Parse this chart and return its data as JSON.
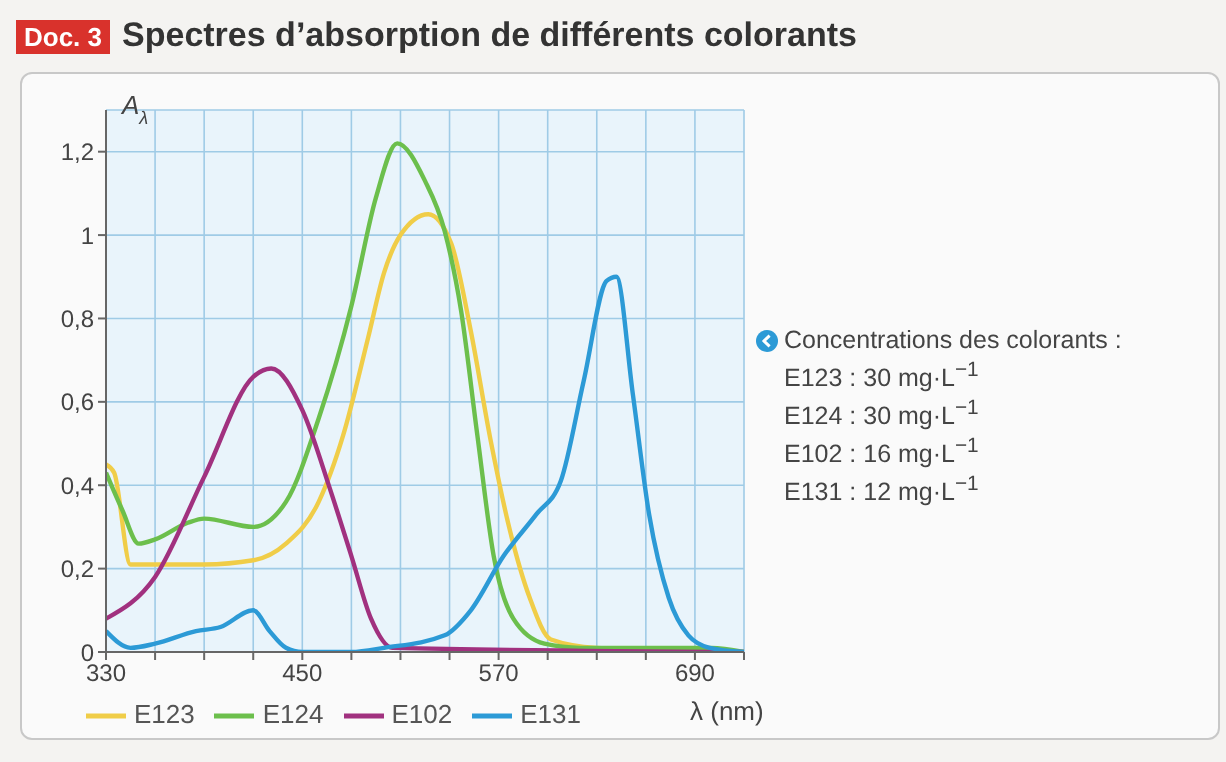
{
  "chart_data": {
    "type": "line",
    "title": "Spectres d’absorption de différents colorants",
    "xlabel": "λ (nm)",
    "ylabel": "A$_{λ}$",
    "xlim": [
      330,
      720
    ],
    "xticks": [
      330,
      {
        "value": 360,
        "label": null
      },
      {
        "value": 390,
        "label": null
      },
      {
        "value": 420,
        "label": null
      },
      450,
      {
        "value": 480,
        "label": null
      },
      {
        "value": 510,
        "label": null
      },
      {
        "value": 540,
        "label": null
      },
      570,
      {
        "value": 600,
        "label": null
      },
      {
        "value": 630,
        "label": null
      },
      {
        "value": 660,
        "label": null
      },
      690,
      {
        "value": 720,
        "label": null
      }
    ],
    "ylim": [
      0,
      1.3
    ],
    "yticks": [
      0,
      {
        "value": 0.2,
        "label": "0,2"
      },
      {
        "value": 0.4,
        "label": "0,4"
      },
      {
        "value": 0.6,
        "label": "0,6"
      },
      {
        "value": 0.8,
        "label": "0,8"
      },
      1,
      {
        "value": 1.2,
        "label": "1,2"
      }
    ],
    "grid": true,
    "legend": "bottom",
    "marker": "none",
    "line_style": "solid",
    "series": [
      {
        "name": "E123",
        "color": "#f0cd48",
        "x": [
          330,
          335,
          345,
          360,
          390,
          420,
          440,
          460,
          475,
          490,
          500,
          510,
          527,
          541,
          553,
          565,
          577,
          589,
          602,
          630,
          720
        ],
        "values": [
          0.45,
          0.43,
          0.21,
          0.21,
          0.21,
          0.22,
          0.26,
          0.36,
          0.52,
          0.75,
          0.91,
          1.0,
          1.05,
          0.98,
          0.77,
          0.51,
          0.29,
          0.13,
          0.03,
          0.01,
          0
        ]
      },
      {
        "name": "E124",
        "color": "#6cbf4c",
        "x": [
          330,
          340,
          350,
          360,
          380,
          390,
          420,
          440,
          460,
          480,
          495,
          508,
          525,
          537,
          547,
          557,
          567,
          579,
          598,
          620,
          700,
          720
        ],
        "values": [
          0.43,
          0.34,
          0.26,
          0.27,
          0.31,
          0.32,
          0.3,
          0.36,
          0.56,
          0.83,
          1.09,
          1.22,
          1.13,
          1.01,
          0.82,
          0.52,
          0.23,
          0.08,
          0.02,
          0.01,
          0.01,
          0
        ]
      },
      {
        "name": "E102",
        "color": "#a1317f",
        "x": [
          330,
          360,
          390,
          420,
          431,
          450,
          467,
          480,
          492,
          505,
          720
        ],
        "values": [
          0.08,
          0.18,
          0.42,
          0.66,
          0.68,
          0.58,
          0.39,
          0.23,
          0.08,
          0.01,
          0
        ]
      },
      {
        "name": "E131",
        "color": "#2c9ad6",
        "x": [
          330,
          345,
          360,
          385,
          400,
          420,
          430,
          440,
          450,
          480,
          500,
          537,
          553,
          573,
          593,
          608,
          622,
          636,
          642,
          652,
          662,
          674,
          686,
          699,
          720
        ],
        "values": [
          0.05,
          0.01,
          0.02,
          0.05,
          0.06,
          0.1,
          0.05,
          0.01,
          0,
          0,
          0.01,
          0.04,
          0.1,
          0.23,
          0.33,
          0.41,
          0.65,
          0.89,
          0.9,
          0.62,
          0.33,
          0.13,
          0.04,
          0.01,
          0
        ]
      }
    ],
    "annotations": [
      "Doc. 3",
      "Concentrations des colorants :",
      "E123 : 30 mg·L$^{−1}$",
      "E124 : 30 mg·L$^{−1}$",
      "E102 : 16 mg·L$^{−1}$",
      "E131 : 12 mg·L$^{−1}$"
    ]
  }
}
